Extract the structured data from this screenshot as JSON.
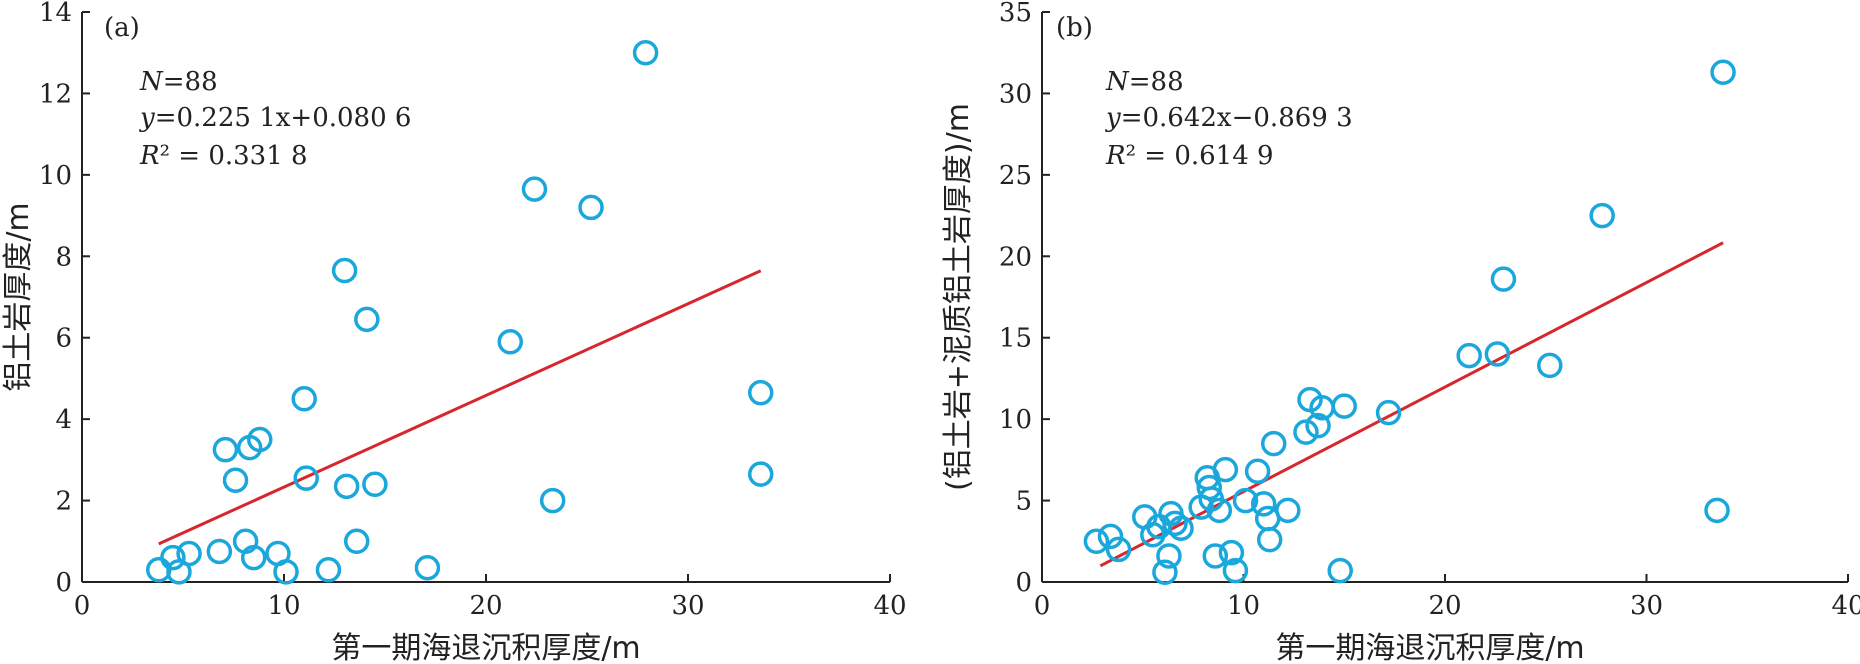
{
  "colors": {
    "marker": "#1aa7dc",
    "fit_line": "#d7262e",
    "axis": "#222222"
  },
  "chart_data": [
    {
      "type": "scatter",
      "panel_label": "(a)",
      "xlabel": "第一期海退沉积厚度/m",
      "ylabel": "铝土岩厚度/m",
      "xlim": [
        0,
        40
      ],
      "ylim": [
        0,
        14
      ],
      "xticks": [
        0,
        10,
        20,
        30,
        40
      ],
      "yticks": [
        0,
        2,
        4,
        6,
        8,
        10,
        12,
        14
      ],
      "stats": {
        "n": "88",
        "equation": "0.225 1x+0.080 6",
        "r2": "0.331 8"
      },
      "fit": {
        "slope": 0.2251,
        "intercept": 0.0806,
        "x_range": [
          3.8,
          33.6
        ]
      },
      "grid": false,
      "x": [
        3.8,
        4.5,
        4.8,
        5.3,
        6.8,
        7.1,
        7.6,
        8.1,
        8.3,
        8.5,
        8.8,
        9.7,
        10.1,
        11.0,
        11.1,
        12.2,
        13.0,
        13.1,
        13.6,
        14.1,
        14.5,
        17.1,
        21.2,
        22.4,
        23.3,
        25.2,
        27.9,
        33.6,
        33.6
      ],
      "y": [
        0.3,
        0.6,
        0.25,
        0.7,
        0.75,
        3.25,
        2.5,
        1.0,
        3.3,
        0.6,
        3.5,
        0.7,
        0.25,
        4.5,
        2.55,
        0.3,
        7.65,
        2.35,
        1.0,
        6.45,
        2.4,
        0.35,
        5.9,
        9.65,
        2.0,
        9.2,
        13.0,
        4.65,
        2.65
      ]
    },
    {
      "type": "scatter",
      "panel_label": "(b)",
      "xlabel": "第一期海退沉积厚度/m",
      "ylabel": "(铝土岩+泥质铝土岩厚度)/m",
      "xlim": [
        0,
        40
      ],
      "ylim": [
        0,
        35
      ],
      "xticks": [
        0,
        10,
        20,
        30,
        40
      ],
      "yticks": [
        0,
        5,
        10,
        15,
        20,
        25,
        30,
        35
      ],
      "stats": {
        "n": "88",
        "equation": "0.642x−0.869 3",
        "r2": "0.614 9"
      },
      "fit": {
        "slope": 0.642,
        "intercept": -0.8693,
        "x_range": [
          2.9,
          33.8
        ]
      },
      "grid": false,
      "x": [
        2.7,
        3.4,
        3.8,
        5.1,
        5.5,
        5.8,
        6.1,
        6.3,
        6.4,
        6.6,
        6.9,
        7.9,
        8.2,
        8.3,
        8.4,
        8.6,
        8.8,
        9.1,
        9.4,
        9.6,
        10.1,
        10.7,
        11.0,
        11.2,
        11.3,
        11.5,
        12.2,
        13.1,
        13.3,
        13.7,
        13.9,
        14.8,
        15.0,
        17.2,
        21.2,
        22.6,
        22.9,
        25.2,
        27.8,
        33.5,
        33.8
      ],
      "y": [
        2.5,
        2.8,
        2.0,
        4.0,
        2.9,
        3.4,
        0.6,
        1.6,
        4.2,
        3.6,
        3.3,
        4.6,
        6.4,
        5.8,
        5.1,
        1.6,
        4.4,
        6.9,
        1.8,
        0.7,
        5.0,
        6.8,
        4.8,
        3.9,
        2.6,
        8.5,
        4.4,
        9.2,
        11.2,
        9.6,
        10.7,
        0.7,
        10.8,
        10.4,
        13.9,
        14.0,
        18.6,
        13.3,
        22.5,
        4.4,
        31.3
      ]
    }
  ]
}
